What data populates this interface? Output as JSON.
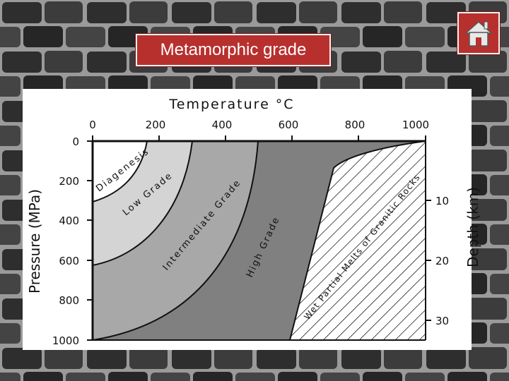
{
  "slide": {
    "title": "Metamorphic grade"
  },
  "icons": {
    "home": "home-icon"
  },
  "colors": {
    "title_bg": "#b8302e",
    "diagenesis": "#ffffff",
    "low_grade": "#d4d4d4",
    "intermediate_grade": "#a8a8a8",
    "high_grade": "#808080",
    "partial_melt": "#ffffff"
  },
  "diagram": {
    "top_axis": {
      "title": "Temperature °C",
      "ticks": [
        "0",
        "200",
        "400",
        "600",
        "800",
        "1000"
      ]
    },
    "left_axis": {
      "title": "Pressure (MPa)",
      "ticks": [
        "0",
        "200",
        "400",
        "600",
        "800",
        "1000"
      ]
    },
    "right_axis": {
      "title": "Depth (km)",
      "ticks": [
        "10",
        "20",
        "30"
      ]
    },
    "zones": {
      "diagenesis": "Diagenesis",
      "low_grade": "Low Grade",
      "intermediate_grade": "Intermediate Grade",
      "high_grade": "High Grade",
      "partial_melt": "Wet Partial Melts of Granitic Rocks"
    }
  }
}
